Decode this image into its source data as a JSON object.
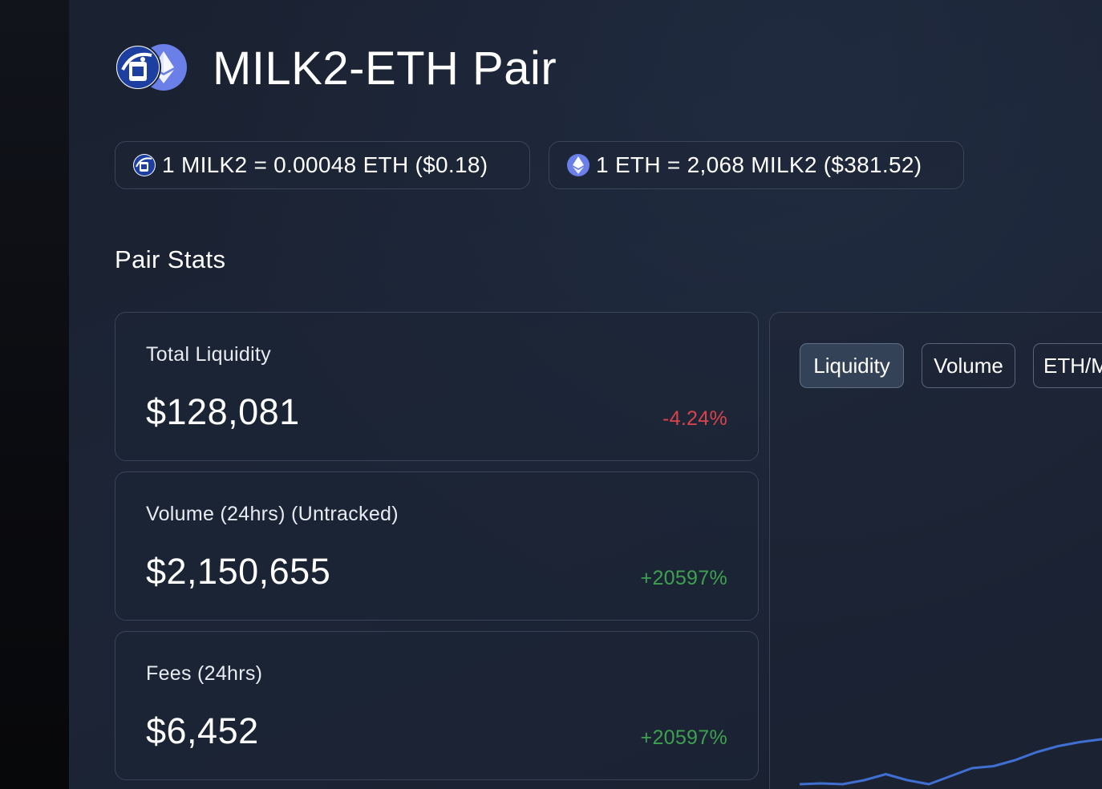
{
  "header": {
    "title": "MILK2-ETH Pair"
  },
  "rates": [
    {
      "icon": "milk2-token-icon",
      "text": "1 MILK2 = 0.00048 ETH ($0.18)"
    },
    {
      "icon": "eth-token-icon",
      "text": "1 ETH = 2,068 MILK2 ($381.52)"
    }
  ],
  "stats": {
    "title": "Pair Stats",
    "cards": [
      {
        "label": "Total Liquidity",
        "value": "$128,081",
        "change": "-4.24%",
        "direction": "down"
      },
      {
        "label": "Volume (24hrs) (Untracked)",
        "value": "$2,150,655",
        "change": "+20597%",
        "direction": "up"
      },
      {
        "label": "Fees (24hrs)",
        "value": "$6,452",
        "change": "+20597%",
        "direction": "up"
      }
    ]
  },
  "chart": {
    "tabs": [
      "Liquidity",
      "Volume",
      "ETH/M"
    ],
    "active_tab": "Liquidity",
    "line_color": "#3f6fd1"
  },
  "chart_data": {
    "type": "line",
    "title": "",
    "xlabel": "",
    "ylabel": "",
    "series": [
      {
        "values": [
          0.0,
          0.02,
          0.0,
          0.1,
          0.25,
          0.1,
          0.0,
          0.2,
          0.4,
          0.45,
          0.6,
          0.8,
          0.95,
          1.05,
          1.12,
          1.2
        ]
      }
    ],
    "grid": false,
    "legend": "none"
  },
  "colors": {
    "negative": "#d9434c",
    "positive": "#3ea14f",
    "eth": "#6b7fe8",
    "milk": "#1c3fa0"
  }
}
